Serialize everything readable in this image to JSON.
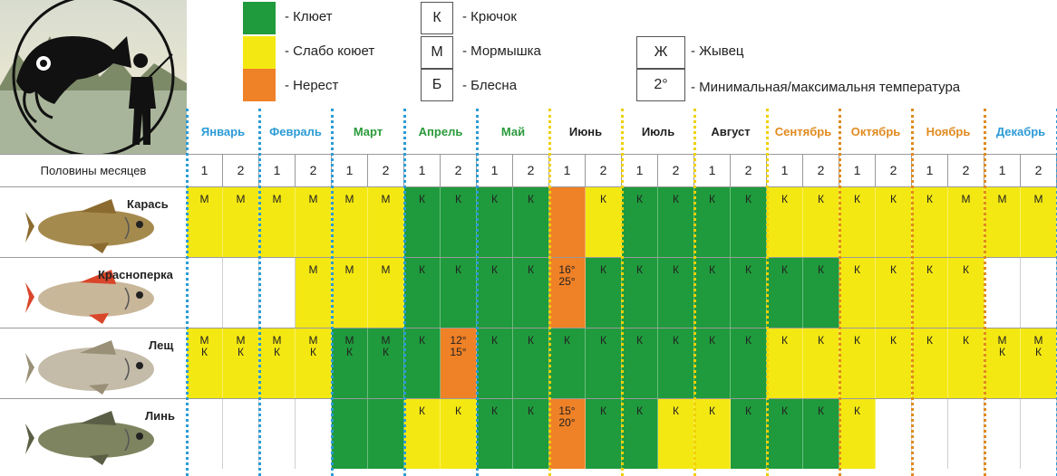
{
  "legend": {
    "colors": [
      {
        "label": "- Клюет",
        "color": "#1f9a3c"
      },
      {
        "label": "- Слабо коюет",
        "color": "#f4e812"
      },
      {
        "label": "- Нерест",
        "color": "#ef8127"
      }
    ],
    "baits": [
      {
        "letter": "К",
        "label": "- Крючок"
      },
      {
        "letter": "М",
        "label": "- Мормышка"
      },
      {
        "letter": "Б",
        "label": "- Блесна"
      }
    ],
    "extra": [
      {
        "letter": "Ж",
        "label": "- Жывец"
      },
      {
        "letter": "2°",
        "label": "- Минимальная/максимальня температура"
      }
    ]
  },
  "halves_label": "Половины месяцев",
  "months": [
    {
      "name": "Январь",
      "color": "#2c9bd6"
    },
    {
      "name": "Февраль",
      "color": "#2c9bd6"
    },
    {
      "name": "Март",
      "color": "#2a9a3a"
    },
    {
      "name": "Апрель",
      "color": "#2a9a3a"
    },
    {
      "name": "Май",
      "color": "#2a9a3a"
    },
    {
      "name": "Июнь",
      "color": "#222222"
    },
    {
      "name": "Июль",
      "color": "#222222"
    },
    {
      "name": "Август",
      "color": "#222222"
    },
    {
      "name": "Сентябрь",
      "color": "#e08a1e"
    },
    {
      "name": "Октябрь",
      "color": "#e08a1e"
    },
    {
      "name": "Ноябрь",
      "color": "#e08a1e"
    },
    {
      "name": "Декабрь",
      "color": "#2c9bd6"
    }
  ],
  "halves": [
    "1",
    "2",
    "1",
    "2",
    "1",
    "2",
    "1",
    "2",
    "1",
    "2",
    "1",
    "2",
    "1",
    "2",
    "1",
    "2",
    "1",
    "2",
    "1",
    "2",
    "1",
    "2",
    "1",
    "2"
  ],
  "palette": {
    "G": "#1f9a3c",
    "Y": "#f4e812",
    "O": "#ef8127",
    "W": "#ffffff"
  },
  "fish": [
    {
      "name": "Карась",
      "colors": [
        "Y",
        "Y",
        "Y",
        "Y",
        "Y",
        "Y",
        "G",
        "G",
        "G",
        "G",
        "O",
        "Y",
        "G",
        "G",
        "G",
        "G",
        "Y",
        "Y",
        "Y",
        "Y",
        "Y",
        "Y",
        "Y",
        "Y"
      ],
      "texts": [
        "М",
        "М",
        "М",
        "М",
        "М",
        "М",
        "К",
        "К",
        "К",
        "К",
        "",
        "К",
        "К",
        "К",
        "К",
        "К",
        "К",
        "К",
        "К",
        "К",
        "К",
        "М",
        "М",
        "М"
      ]
    },
    {
      "name": "Красноперка",
      "colors": [
        "W",
        "W",
        "W",
        "Y",
        "Y",
        "Y",
        "G",
        "G",
        "G",
        "G",
        "O",
        "G",
        "G",
        "G",
        "G",
        "G",
        "G",
        "G",
        "Y",
        "Y",
        "Y",
        "Y",
        "W",
        "W"
      ],
      "texts": [
        "",
        "",
        "",
        "М",
        "М",
        "М",
        "К",
        "К",
        "К",
        "К",
        "16°\n25°",
        "К",
        "К",
        "К",
        "К",
        "К",
        "К",
        "К",
        "К",
        "К",
        "К",
        "К",
        "",
        ""
      ]
    },
    {
      "name": "Лещ",
      "colors": [
        "Y",
        "Y",
        "Y",
        "Y",
        "G",
        "G",
        "G",
        "O",
        "G",
        "G",
        "G",
        "G",
        "G",
        "G",
        "G",
        "G",
        "Y",
        "Y",
        "Y",
        "Y",
        "Y",
        "Y",
        "Y",
        "Y"
      ],
      "texts": [
        "М\nК",
        "М\nК",
        "М\nК",
        "М\nК",
        "М\nК",
        "М\nК",
        "К",
        "12°\n15°",
        "К",
        "К",
        "К",
        "К",
        "К",
        "К",
        "К",
        "К",
        "К",
        "К",
        "К",
        "К",
        "К",
        "К",
        "М\nК",
        "М\nК"
      ]
    },
    {
      "name": "Линь",
      "colors": [
        "W",
        "W",
        "W",
        "W",
        "G",
        "G",
        "Y",
        "Y",
        "G",
        "G",
        "O",
        "G",
        "G",
        "Y",
        "Y",
        "G",
        "G",
        "G",
        "Y",
        "W",
        "W",
        "W",
        "W",
        "W"
      ],
      "texts": [
        "",
        "",
        "",
        "",
        "",
        "",
        "К",
        "К",
        "К",
        "К",
        "15°\n20°",
        "К",
        "К",
        "К",
        "К",
        "К",
        "К",
        "К",
        "К",
        "",
        "",
        "",
        "",
        ""
      ]
    }
  ]
}
